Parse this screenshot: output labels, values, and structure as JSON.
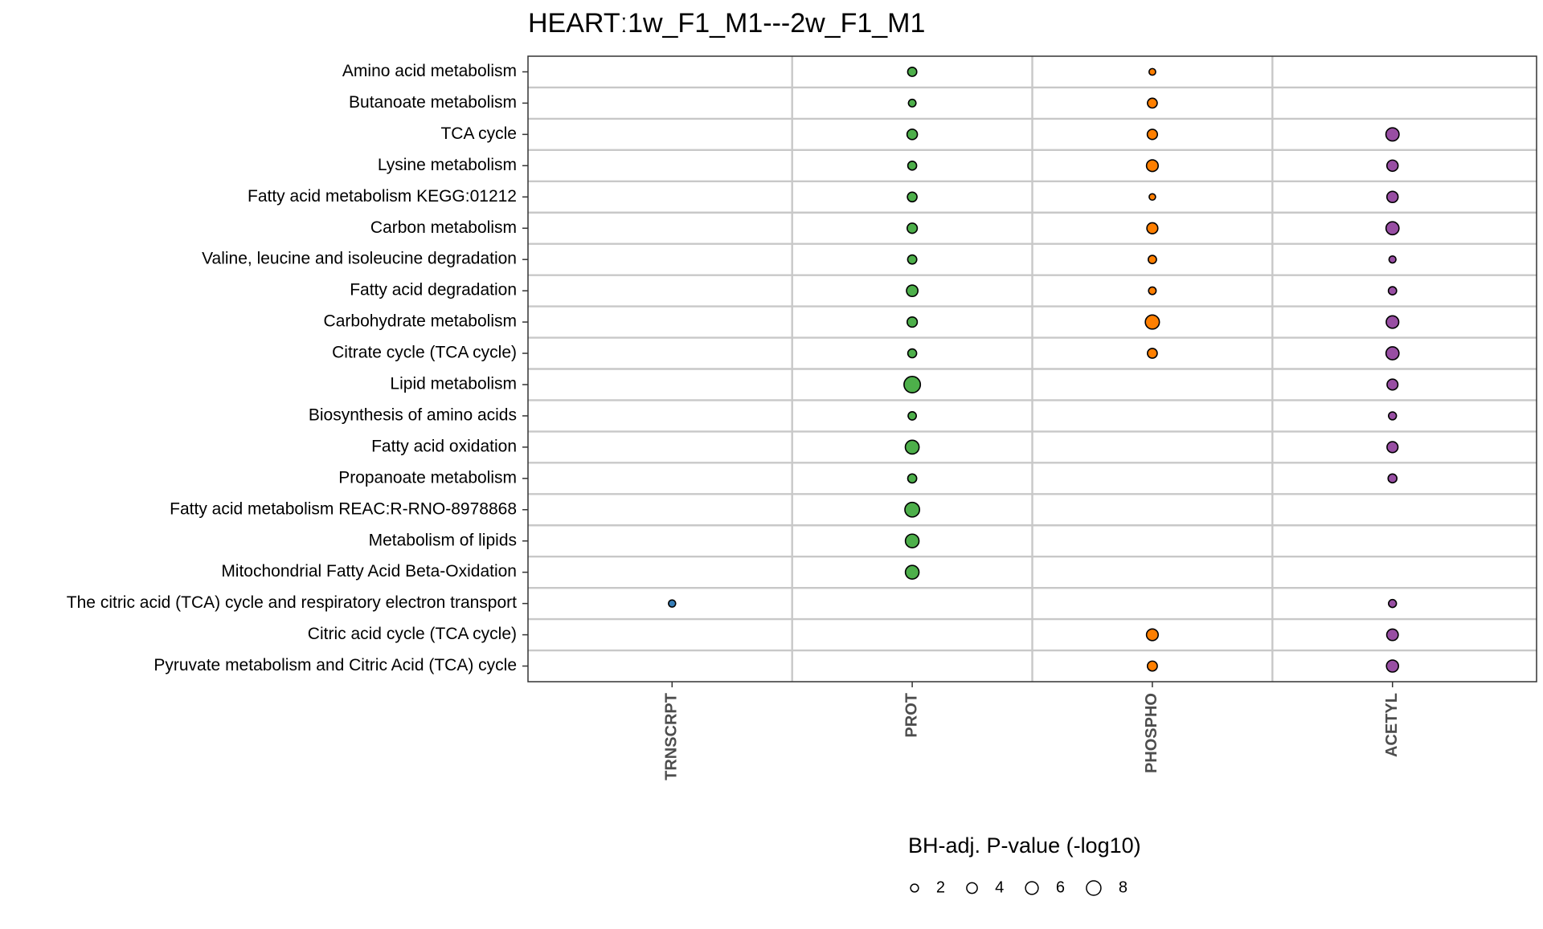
{
  "chart_data": {
    "type": "scatter",
    "title": "HEARTː1w_F1_M1---2w_F1_M1",
    "x_categories": [
      "TRNSCRPT",
      "PROT",
      "PHOSPHO",
      "ACETYL"
    ],
    "y_categories": [
      "Amino acid metabolism",
      "Butanoate metabolism",
      "TCA cycle",
      "Lysine metabolism",
      "Fatty acid metabolism KEGG:01212",
      "Carbon metabolism",
      "Valine, leucine and isoleucine degradation",
      "Fatty acid degradation",
      "Carbohydrate metabolism",
      "Citrate cycle (TCA cycle)",
      "Lipid metabolism",
      "Biosynthesis of amino acids",
      "Fatty acid oxidation",
      "Propanoate metabolism",
      "Fatty acid metabolism REAC:R-RNO-8978868",
      "Metabolism of lipids",
      "Mitochondrial Fatty Acid Beta-Oxidation",
      "The citric acid (TCA) cycle and respiratory electron transport",
      "Citric acid cycle (TCA cycle)",
      "Pyruvate metabolism and Citric Acid (TCA) cycle"
    ],
    "colors": {
      "TRNSCRPT": "#377eb8",
      "PROT": "#4daf4a",
      "PHOSPHO": "#ff7f00",
      "ACETYL": "#984ea3"
    },
    "size_legend": {
      "title": "BH-adj. P-value (-log10)",
      "breaks": [
        2,
        4,
        6,
        8
      ],
      "labels": [
        "2",
        "4",
        "6",
        "8"
      ]
    },
    "points": [
      {
        "y": "Amino acid metabolism",
        "x": "PROT",
        "value": 2.8
      },
      {
        "y": "Amino acid metabolism",
        "x": "PHOSPHO",
        "value": 1.3
      },
      {
        "y": "Butanoate metabolism",
        "x": "PROT",
        "value": 1.8
      },
      {
        "y": "Butanoate metabolism",
        "x": "PHOSPHO",
        "value": 3.3
      },
      {
        "y": "TCA cycle",
        "x": "PROT",
        "value": 3.8
      },
      {
        "y": "TCA cycle",
        "x": "PHOSPHO",
        "value": 3.6
      },
      {
        "y": "TCA cycle",
        "x": "ACETYL",
        "value": 6.5
      },
      {
        "y": "Lysine metabolism",
        "x": "PROT",
        "value": 2.6
      },
      {
        "y": "Lysine metabolism",
        "x": "PHOSPHO",
        "value": 5.0
      },
      {
        "y": "Lysine metabolism",
        "x": "ACETYL",
        "value": 4.5
      },
      {
        "y": "Fatty acid metabolism KEGG:01212",
        "x": "PROT",
        "value": 3.2
      },
      {
        "y": "Fatty acid metabolism KEGG:01212",
        "x": "PHOSPHO",
        "value": 1.2
      },
      {
        "y": "Fatty acid metabolism KEGG:01212",
        "x": "ACETYL",
        "value": 4.5
      },
      {
        "y": "Carbon metabolism",
        "x": "PROT",
        "value": 3.6
      },
      {
        "y": "Carbon metabolism",
        "x": "PHOSPHO",
        "value": 4.3
      },
      {
        "y": "Carbon metabolism",
        "x": "ACETYL",
        "value": 6.3
      },
      {
        "y": "Valine, leucine and isoleucine degradation",
        "x": "PROT",
        "value": 2.8
      },
      {
        "y": "Valine, leucine and isoleucine degradation",
        "x": "PHOSPHO",
        "value": 2.2
      },
      {
        "y": "Valine, leucine and isoleucine degradation",
        "x": "ACETYL",
        "value": 1.5
      },
      {
        "y": "Fatty acid degradation",
        "x": "PROT",
        "value": 4.7
      },
      {
        "y": "Fatty acid degradation",
        "x": "PHOSPHO",
        "value": 1.8
      },
      {
        "y": "Fatty acid degradation",
        "x": "ACETYL",
        "value": 2.2
      },
      {
        "y": "Carbohydrate metabolism",
        "x": "PROT",
        "value": 3.6
      },
      {
        "y": "Carbohydrate metabolism",
        "x": "PHOSPHO",
        "value": 7.5
      },
      {
        "y": "Carbohydrate metabolism",
        "x": "ACETYL",
        "value": 5.8
      },
      {
        "y": "Citrate cycle (TCA cycle)",
        "x": "PROT",
        "value": 2.6
      },
      {
        "y": "Citrate cycle (TCA cycle)",
        "x": "PHOSPHO",
        "value": 3.3
      },
      {
        "y": "Citrate cycle (TCA cycle)",
        "x": "ACETYL",
        "value": 6.3
      },
      {
        "y": "Lipid metabolism",
        "x": "PROT",
        "value": 10.5
      },
      {
        "y": "Lipid metabolism",
        "x": "ACETYL",
        "value": 4.2
      },
      {
        "y": "Biosynthesis of amino acids",
        "x": "PROT",
        "value": 2.2
      },
      {
        "y": "Biosynthesis of amino acids",
        "x": "ACETYL",
        "value": 2.0
      },
      {
        "y": "Fatty acid oxidation",
        "x": "PROT",
        "value": 7.2
      },
      {
        "y": "Fatty acid oxidation",
        "x": "ACETYL",
        "value": 4.3
      },
      {
        "y": "Propanoate metabolism",
        "x": "PROT",
        "value": 2.7
      },
      {
        "y": "Propanoate metabolism",
        "x": "ACETYL",
        "value": 2.6
      },
      {
        "y": "Fatty acid metabolism REAC:R-RNO-8978868",
        "x": "PROT",
        "value": 8.2
      },
      {
        "y": "Metabolism of lipids",
        "x": "PROT",
        "value": 7.0
      },
      {
        "y": "Mitochondrial Fatty Acid Beta-Oxidation",
        "x": "PROT",
        "value": 7.0
      },
      {
        "y": "The citric acid (TCA) cycle and respiratory electron transport",
        "x": "TRNSCRPT",
        "value": 1.6
      },
      {
        "y": "The citric acid (TCA) cycle and respiratory electron transport",
        "x": "ACETYL",
        "value": 2.0
      },
      {
        "y": "Citric acid cycle (TCA cycle)",
        "x": "PHOSPHO",
        "value": 5.0
      },
      {
        "y": "Citric acid cycle (TCA cycle)",
        "x": "ACETYL",
        "value": 4.8
      },
      {
        "y": "Pyruvate metabolism and Citric Acid (TCA) cycle",
        "x": "PHOSPHO",
        "value": 3.4
      },
      {
        "y": "Pyruvate metabolism and Citric Acid (TCA) cycle",
        "x": "ACETYL",
        "value": 5.3
      }
    ],
    "grid": true,
    "legend_position": "bottom"
  }
}
